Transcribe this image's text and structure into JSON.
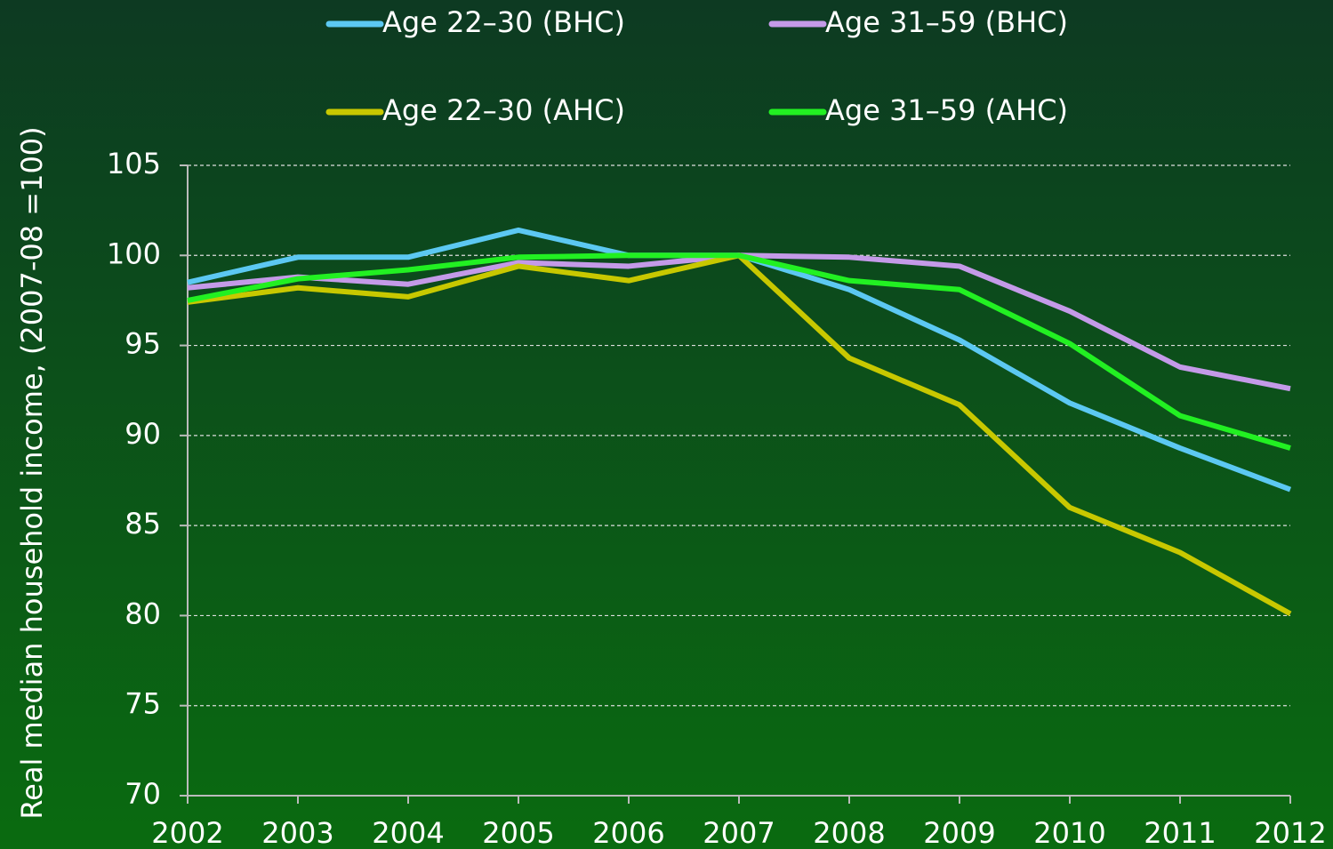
{
  "chart_data": {
    "type": "line",
    "y_label": "Real median household income, (2007-08 =100)",
    "x": [
      2002,
      2003,
      2004,
      2005,
      2006,
      2007,
      2008,
      2009,
      2010,
      2011,
      2012
    ],
    "xlim": [
      2002,
      2012
    ],
    "xticks": [
      2002,
      2003,
      2004,
      2005,
      2006,
      2007,
      2008,
      2009,
      2010,
      2011,
      2012
    ],
    "ylim": [
      70,
      105
    ],
    "yticks": [
      70,
      75,
      80,
      85,
      90,
      95,
      100,
      105
    ],
    "grid": true,
    "series": [
      {
        "name": "Age 22–30 (BHC)",
        "color": "#5cc8f2",
        "values": [
          98.5,
          99.9,
          99.9,
          101.4,
          100.0,
          100,
          98.1,
          95.3,
          91.8,
          89.3,
          87.0
        ]
      },
      {
        "name": "Age 31–59 (BHC)",
        "color": "#c49ae8",
        "values": [
          98.2,
          98.8,
          98.4,
          99.6,
          99.4,
          100,
          99.9,
          99.4,
          96.9,
          93.8,
          92.6
        ]
      },
      {
        "name": "Age 22–30 (AHC)",
        "color": "#c8c800",
        "values": [
          97.4,
          98.2,
          97.7,
          99.4,
          98.6,
          100,
          94.3,
          91.7,
          86.0,
          83.5,
          80.1
        ]
      },
      {
        "name": "Age 31–59 (AHC)",
        "color": "#22f022",
        "values": [
          97.5,
          98.7,
          99.2,
          99.9,
          100.0,
          100,
          98.6,
          98.1,
          95.1,
          91.1,
          89.3
        ]
      }
    ]
  }
}
